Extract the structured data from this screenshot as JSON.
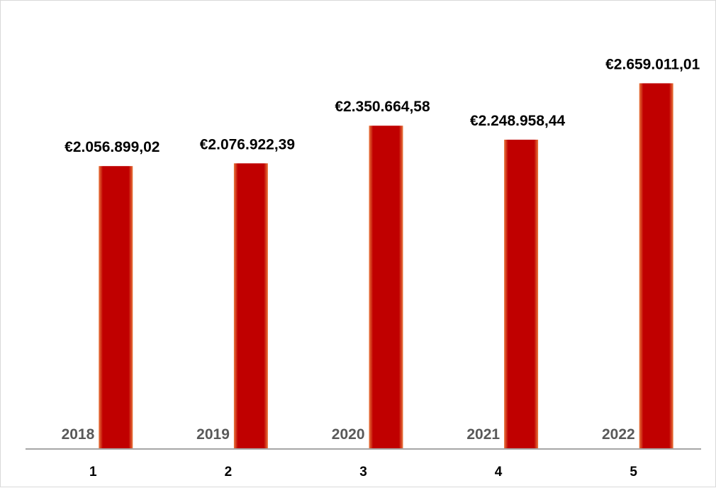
{
  "chart_data": {
    "type": "bar",
    "categories": [
      "1",
      "2",
      "3",
      "4",
      "5"
    ],
    "years": [
      "2018",
      "2019",
      "2020",
      "2021",
      "2022"
    ],
    "values": [
      2056899.02,
      2076922.39,
      2350664.58,
      2248958.44,
      2659011.01
    ],
    "value_labels": [
      "€2.056.899,02",
      "€2.076.922,39",
      "€2.350.664,58",
      "€2.248.958,44",
      "€2.659.011,01"
    ],
    "title": "",
    "xlabel": "",
    "ylabel": "",
    "ylim": [
      0,
      2950000
    ],
    "grid": false,
    "legend": "none",
    "colors": {
      "bar": "#c00000",
      "bar_edge": "#e06a3a",
      "axis": "#a6a6a6",
      "year_text": "#595959"
    }
  }
}
